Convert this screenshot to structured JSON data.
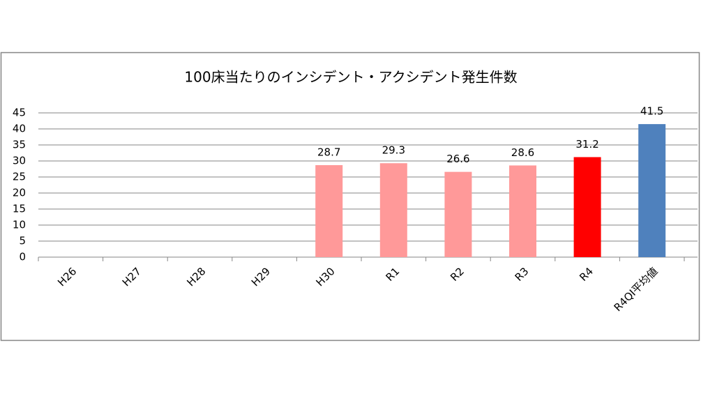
{
  "chart_data": {
    "type": "bar",
    "title": "100床当たりのインシデント・アクシデント発生件数",
    "categories": [
      "H26",
      "H27",
      "H28",
      "H29",
      "H30",
      "R1",
      "R2",
      "R3",
      "R4",
      "R4QI平均値"
    ],
    "values": [
      null,
      null,
      null,
      null,
      28.7,
      29.3,
      26.6,
      28.6,
      31.2,
      41.5
    ],
    "colors": [
      null,
      null,
      null,
      null,
      "#ff9999",
      "#ff9999",
      "#ff9999",
      "#ff9999",
      "#ff0000",
      "#4f81bd"
    ],
    "ylim": [
      0,
      45
    ],
    "yticks": [
      0,
      5,
      10,
      15,
      20,
      25,
      30,
      35,
      40,
      45
    ],
    "grid": true
  }
}
